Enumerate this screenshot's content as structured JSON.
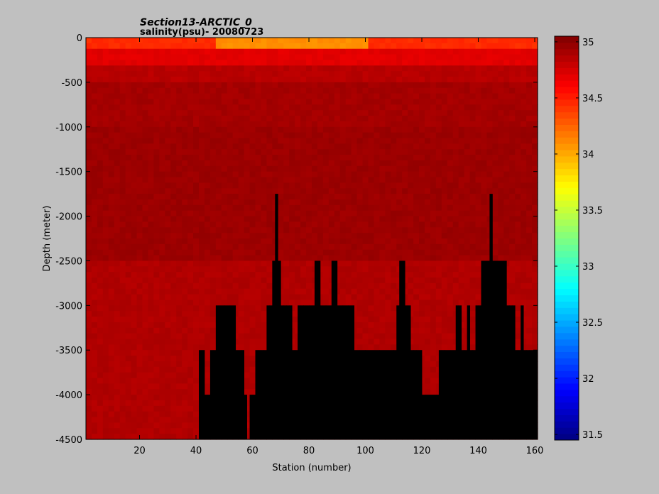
{
  "chart_data": {
    "type": "heatmap",
    "title": "Section13-ARCTIC_0",
    "subtitle": "salinity(psu)- 20080723",
    "xlabel": "Station (number)",
    "ylabel": "Depth (meter)",
    "xlim": [
      1,
      161
    ],
    "ylim": [
      -4500,
      0
    ],
    "x_ticks": [
      20,
      40,
      60,
      80,
      100,
      120,
      140,
      160
    ],
    "y_ticks": [
      0,
      -500,
      -1000,
      -1500,
      -2000,
      -2500,
      -3000,
      -3500,
      -4000,
      -4500
    ],
    "colorbar": {
      "range": [
        31.45,
        35.05
      ],
      "ticks": [
        31.5,
        32,
        32.5,
        33,
        33.5,
        34,
        34.5,
        35
      ],
      "colormap": "jet",
      "colors": [
        "#00008f",
        "#0000ff",
        "#0080ff",
        "#00ffff",
        "#80ff80",
        "#ffffff",
        "#ffff00",
        "#ff8000",
        "#ff0000",
        "#800000"
      ]
    },
    "grid": false,
    "bottom_depth_by_station": {
      "stations": [
        1,
        38,
        40,
        41,
        42,
        43,
        44,
        45,
        46,
        47,
        48,
        50,
        52,
        54,
        56,
        57,
        58,
        59,
        60,
        61,
        62,
        63,
        64,
        65,
        66,
        67,
        68,
        69,
        70,
        71,
        72,
        73,
        74,
        75,
        76,
        78,
        80,
        82,
        84,
        86,
        88,
        89,
        90,
        92,
        94,
        96,
        98,
        100,
        105,
        110,
        111,
        112,
        113,
        114,
        115,
        116,
        117,
        118,
        120,
        125,
        126,
        127,
        128,
        130,
        132,
        133,
        134,
        135,
        136,
        137,
        138,
        139,
        140,
        141,
        142,
        143,
        144,
        145,
        146,
        147,
        148,
        149,
        150,
        151,
        152,
        153,
        154,
        155,
        156,
        157,
        158,
        160,
        161
      ],
      "depth": [
        -4500,
        -4500,
        -4500,
        -3500,
        -3500,
        -4000,
        -4000,
        -3500,
        -3500,
        -3000,
        -3000,
        -3000,
        -3000,
        -3500,
        -3500,
        -4000,
        -4500,
        -4000,
        -4000,
        -3500,
        -3500,
        -3500,
        -3500,
        -3000,
        -3000,
        -2500,
        -1750,
        -2500,
        -3000,
        -3000,
        -3000,
        -3000,
        -3500,
        -3500,
        -3000,
        -3000,
        -3000,
        -2500,
        -3000,
        -3000,
        -2500,
        -2500,
        -3000,
        -3000,
        -3000,
        -3500,
        -3500,
        -3500,
        -3500,
        -3500,
        -3000,
        -2500,
        -2500,
        -3000,
        -3000,
        -3500,
        -3500,
        -3500,
        -4000,
        -4000,
        -3500,
        -3500,
        -3500,
        -3500,
        -3000,
        -3000,
        -3500,
        -3500,
        -3000,
        -3500,
        -3500,
        -3000,
        -3000,
        -2500,
        -2500,
        -2500,
        -1750,
        -2500,
        -2500,
        -2500,
        -2500,
        -2500,
        -3000,
        -3000,
        -3000,
        -3500,
        -3500,
        -3000,
        -3500,
        -3500,
        -3500,
        -3500,
        -3500
      ]
    }
  }
}
